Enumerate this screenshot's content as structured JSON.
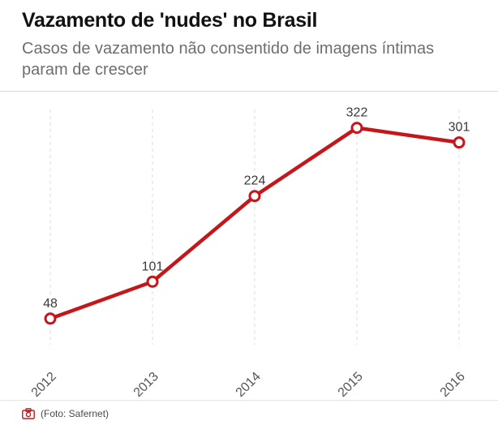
{
  "header": {
    "title": "Vazamento de 'nudes' no Brasil",
    "subtitle": "Casos de vazamento não consentido de imagens íntimas param de crescer"
  },
  "chart_data": {
    "type": "line",
    "title": "Vazamento de 'nudes' no Brasil",
    "subtitle": "Casos de vazamento não consentido de imagens íntimas param de crescer",
    "categories": [
      "2012",
      "2013",
      "2014",
      "2015",
      "2016"
    ],
    "values": [
      48,
      101,
      224,
      322,
      301
    ],
    "xlabel": "",
    "ylabel": "",
    "ylim": [
      0,
      360
    ],
    "grid": "vertical-dashed",
    "legend": "none",
    "data_labels": true,
    "marker": "open-circle",
    "line_color": "#c4171c"
  },
  "footer": {
    "credit": "(Foto: Safernet)"
  },
  "colors": {
    "accent": "#c4171c",
    "title_text": "#111111",
    "subtitle_text": "#6e6e6e",
    "axis_label": "#555555",
    "point_label": "#3a3a3a",
    "grid": "#dcdcdc",
    "divider": "#d9d9d9"
  }
}
